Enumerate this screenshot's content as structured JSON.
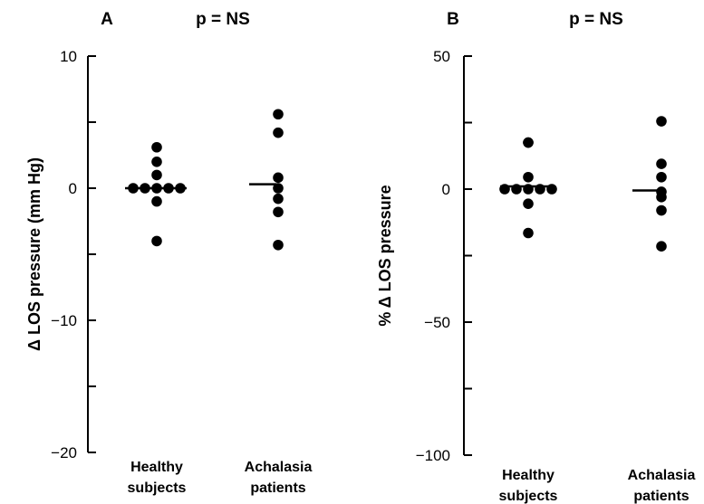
{
  "chart_data": [
    {
      "type": "scatter",
      "panel_label": "A",
      "title": "p = NS",
      "ylabel": "Δ LOS pressure (mm Hg)",
      "ylim": [
        -20,
        10
      ],
      "yticks": [
        10,
        0,
        -10,
        -20
      ],
      "ytick_labels": [
        "10",
        "0",
        "−10",
        "−20"
      ],
      "categories": [
        "Healthy subjects",
        "Achalasia patients"
      ],
      "category_lines": [
        [
          "Healthy",
          "subjects"
        ],
        [
          "Achalasia",
          "patients"
        ]
      ],
      "points": [
        [
          3.1,
          2.0,
          1.0,
          0,
          0,
          0,
          0,
          0,
          -1.0,
          -4.0
        ],
        [
          5.6,
          4.2,
          0.8,
          0,
          -0.8,
          -1.8,
          -4.3
        ]
      ],
      "medians": [
        0,
        0.3
      ]
    },
    {
      "type": "scatter",
      "panel_label": "B",
      "title": "p = NS",
      "ylabel": "% Δ LOS pressure",
      "ylim": [
        -100,
        50
      ],
      "yticks": [
        50,
        0,
        -50,
        -100
      ],
      "ytick_labels": [
        "50",
        "0",
        "−50",
        "−100"
      ],
      "categories": [
        "Healthy subjects",
        "Achalasia patients"
      ],
      "category_lines": [
        [
          "Healthy",
          "subjects"
        ],
        [
          "Achalasia",
          "patients"
        ]
      ],
      "points": [
        [
          17.5,
          17.5,
          4.5,
          0,
          0,
          0,
          0,
          0,
          -5.5,
          -16.5
        ],
        [
          25.5,
          9.5,
          4.5,
          -1.0,
          -3.0,
          -8.0,
          -21.5
        ]
      ],
      "medians": [
        1.0,
        -0.5
      ]
    }
  ]
}
